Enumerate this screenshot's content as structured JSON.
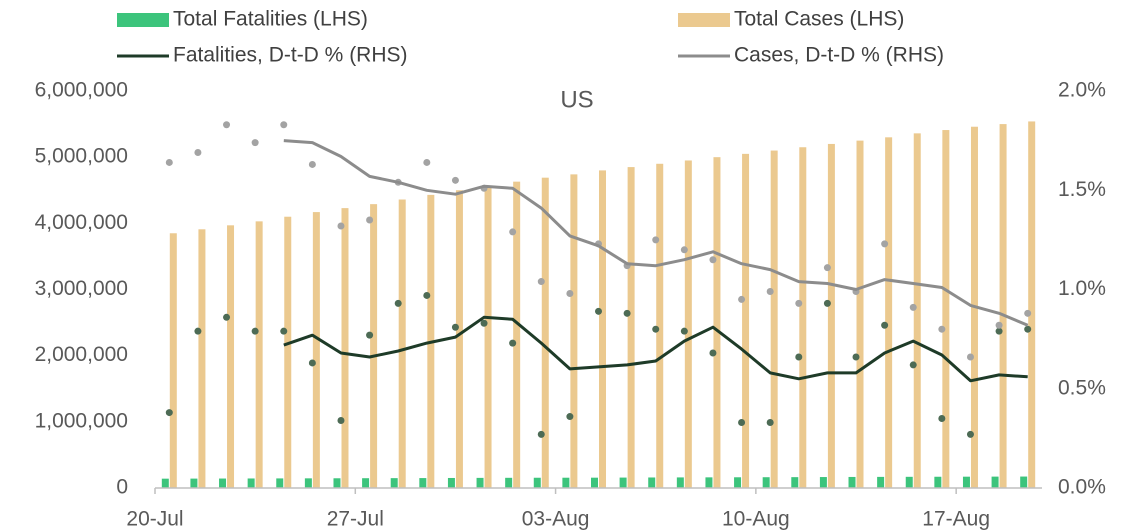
{
  "chart_data": {
    "type": "bar",
    "title": "US",
    "categories": [
      "20-Jul",
      null,
      null,
      null,
      null,
      null,
      null,
      "27-Jul",
      null,
      null,
      null,
      null,
      null,
      null,
      "03-Aug",
      null,
      null,
      null,
      null,
      null,
      null,
      "10-Aug",
      null,
      null,
      null,
      null,
      null,
      null,
      "17-Aug",
      null,
      null
    ],
    "ylim": [
      0,
      6000000
    ],
    "yticks": [
      0,
      {
        "value": 1000000,
        "label": "1,000,000"
      },
      {
        "value": 2000000,
        "label": "2,000,000"
      },
      {
        "value": 3000000,
        "label": "3,000,000"
      },
      {
        "value": 4000000,
        "label": "4,000,000"
      },
      {
        "value": 5000000,
        "label": "5,000,000"
      },
      {
        "value": 6000000,
        "label": "6,000,000"
      }
    ],
    "y2lim": [
      0,
      2.0
    ],
    "y2ticks": [
      {
        "value": 0,
        "label": "0.0%"
      },
      {
        "value": 0.5,
        "label": "0.5%"
      },
      {
        "value": 1.0,
        "label": "1.0%"
      },
      {
        "value": 1.5,
        "label": "1.5%"
      },
      {
        "value": 2.0,
        "label": "2.0%"
      }
    ],
    "series": [
      {
        "name": "Total Fatalities (LHS)",
        "type": "bar",
        "color": "#3cc47c",
        "values": [
          141000,
          142000,
          143000,
          144000,
          145000,
          146000,
          147000,
          148000,
          149000,
          150000,
          151500,
          153000,
          154000,
          155000,
          155500,
          156000,
          157500,
          159000,
          160000,
          161000,
          162000,
          163000,
          164000,
          165500,
          167000,
          168000,
          169000,
          170000,
          171000,
          172000,
          173000
        ]
      },
      {
        "name": "Total Cases (LHS)",
        "type": "bar",
        "color": "#ebc98f",
        "values": [
          3850000,
          3910000,
          3970000,
          4030000,
          4100000,
          4170000,
          4230000,
          4290000,
          4360000,
          4430000,
          4500000,
          4570000,
          4630000,
          4690000,
          4740000,
          4800000,
          4850000,
          4900000,
          4950000,
          5000000,
          5050000,
          5100000,
          5150000,
          5200000,
          5250000,
          5300000,
          5360000,
          5410000,
          5460000,
          5500000,
          5540000
        ]
      },
      {
        "name": "Fatalities, D-t-D % (RHS)",
        "type": "line",
        "axis": "y2",
        "color": "#1e3b28",
        "values": [
          null,
          null,
          null,
          null,
          0.72,
          0.77,
          0.68,
          0.66,
          0.69,
          0.73,
          0.76,
          0.86,
          0.85,
          0.73,
          0.6,
          0.61,
          0.62,
          0.64,
          0.74,
          0.81,
          0.7,
          0.58,
          0.55,
          0.58,
          0.58,
          0.68,
          0.74,
          0.67,
          0.54,
          0.57,
          0.56
        ]
      },
      {
        "name": "Cases, D-t-D % (RHS)",
        "type": "line",
        "axis": "y2",
        "color": "#8c8c8c",
        "values": [
          null,
          null,
          null,
          null,
          1.75,
          1.74,
          1.67,
          1.57,
          1.54,
          1.5,
          1.48,
          1.52,
          1.51,
          1.41,
          1.27,
          1.22,
          1.13,
          1.12,
          1.15,
          1.19,
          1.13,
          1.1,
          1.04,
          1.03,
          1.0,
          1.05,
          1.03,
          1.01,
          0.92,
          0.88,
          0.82
        ]
      },
      {
        "type": "scatter",
        "axis": "y2",
        "color": "#4d6b55",
        "values": [
          0.38,
          0.79,
          0.86,
          0.79,
          0.79,
          0.63,
          0.34,
          0.77,
          0.93,
          0.97,
          0.81,
          0.83,
          0.73,
          0.27,
          0.36,
          0.89,
          0.88,
          0.8,
          0.79,
          0.68,
          0.33,
          0.33,
          0.66,
          0.93,
          0.66,
          0.82,
          0.62,
          0.35,
          0.27,
          0.79,
          0.8
        ]
      },
      {
        "type": "scatter",
        "axis": "y2",
        "color": "#a3a3a3",
        "values": [
          1.64,
          1.69,
          1.83,
          1.74,
          1.83,
          1.63,
          1.32,
          1.35,
          1.54,
          1.64,
          1.55,
          1.51,
          1.29,
          1.04,
          0.98,
          1.23,
          1.12,
          1.25,
          1.2,
          1.15,
          0.95,
          0.99,
          0.93,
          1.11,
          0.99,
          1.23,
          0.91,
          0.8,
          0.66,
          0.82,
          0.88
        ]
      }
    ]
  }
}
